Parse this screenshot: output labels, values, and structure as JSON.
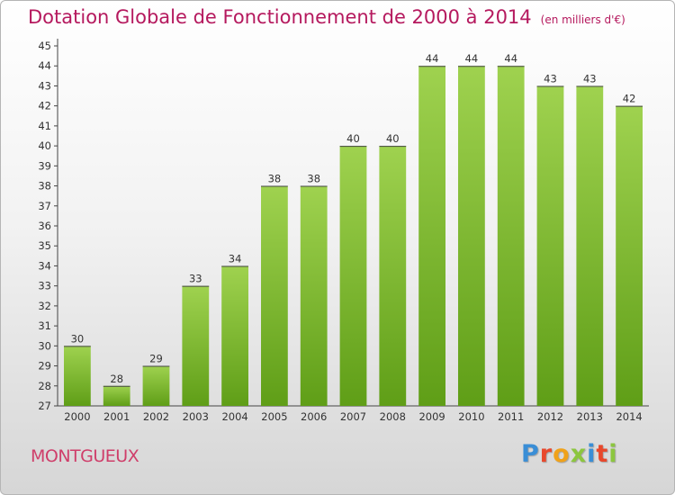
{
  "title": "Dotation Globale de Fonctionnement de 2000 à 2014",
  "unit_note": "(en milliers d'€)",
  "commune": "MONTGUEUX",
  "brand": {
    "letters": [
      {
        "ch": "P",
        "color": "#3a8ed6"
      },
      {
        "ch": "r",
        "color": "#e8482c"
      },
      {
        "ch": "o",
        "color": "#f0a21a"
      },
      {
        "ch": "x",
        "color": "#8cc63f"
      },
      {
        "ch": "i",
        "color": "#3a8ed6"
      },
      {
        "ch": "t",
        "color": "#e8482c"
      },
      {
        "ch": "i",
        "color": "#8cc63f"
      }
    ]
  },
  "colors": {
    "bar_light": "#9fd24f",
    "bar_dark": "#5f9e17",
    "title": "#b5195e"
  },
  "chart_data": {
    "type": "bar",
    "categories": [
      "2000",
      "2001",
      "2002",
      "2003",
      "2004",
      "2005",
      "2006",
      "2007",
      "2008",
      "2009",
      "2010",
      "2011",
      "2012",
      "2013",
      "2014"
    ],
    "values": [
      30,
      28,
      29,
      33,
      34,
      38,
      38,
      40,
      40,
      44,
      44,
      44,
      43,
      43,
      42
    ],
    "data_labels": [
      "30",
      "28",
      "29",
      "33",
      "34",
      "38",
      "38",
      "40",
      "40",
      "44",
      "44",
      "44",
      "43",
      "43",
      "42"
    ],
    "title": "Dotation Globale de Fonctionnement de 2000 à 2014",
    "xlabel": "",
    "ylabel": "",
    "ylim": [
      27,
      45
    ],
    "yticks": [
      "27",
      "28",
      "29",
      "30",
      "31",
      "32",
      "33",
      "34",
      "35",
      "36",
      "37",
      "38",
      "39",
      "40",
      "41",
      "42",
      "43",
      "44",
      "45"
    ],
    "grid": false,
    "legend": "none"
  }
}
